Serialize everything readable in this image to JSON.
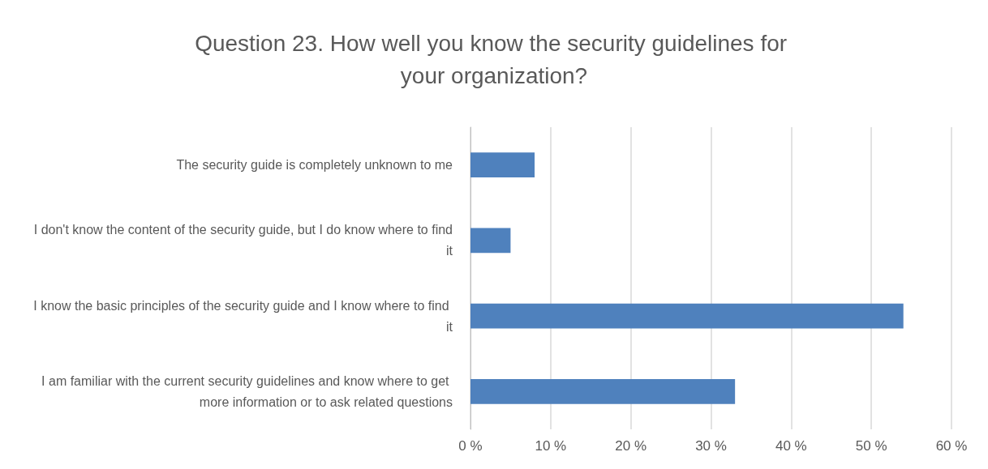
{
  "chart_data": {
    "type": "bar",
    "orientation": "horizontal",
    "title": "Question 23. How well you know the security guidelines for your organization?",
    "categories": [
      "The security guide is completely unknown to me",
      "I don't know the content of the security guide, but I do know where to find it",
      "I know the basic principles of the security guide and I know where to find it",
      "I am familiar with the current security guidelines and know where to get more information or to ask related questions"
    ],
    "values": [
      8,
      5,
      54,
      33
    ],
    "color": "#4f81bd",
    "xlim": [
      0,
      60
    ],
    "xticks": [
      {
        "value": 0,
        "label": "0 %"
      },
      {
        "value": 10,
        "label": "10 %"
      },
      {
        "value": 20,
        "label": "20 %"
      },
      {
        "value": 30,
        "label": "30 %"
      },
      {
        "value": 40,
        "label": "40 %"
      },
      {
        "value": 50,
        "label": "50 %"
      },
      {
        "value": 60,
        "label": "60 %"
      }
    ],
    "grid": "x"
  }
}
